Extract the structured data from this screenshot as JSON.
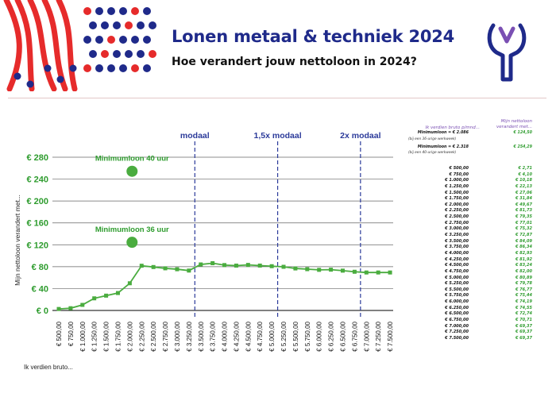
{
  "header": {
    "title": "Lonen metaal & techniek 2024",
    "subtitle": "Hoe verandert jouw nettoloon in 2024?"
  },
  "colors": {
    "title": "#1f2a8a",
    "accent_red": "#e62b2b",
    "logo_blue": "#1f2a8a",
    "logo_purple": "#7a4fb3",
    "series_green": "#4aac3f",
    "label_green": "#2e9c2e",
    "ref_line_blue": "#2b3a9a"
  },
  "icons": {
    "decoration": "dots-and-stripes-pattern",
    "logo": "wrench-v-logo-icon"
  },
  "chart_data": {
    "type": "line",
    "xlabel": "Ik verdien bruto...",
    "ylabel": "Mijn nettoloon verandert met...",
    "ylim": [
      0,
      280
    ],
    "yticks": [
      "€ 0",
      "€ 40",
      "€ 80",
      "€ 120",
      "€ 160",
      "€ 200",
      "€ 240",
      "€ 280"
    ],
    "grid": true,
    "categories": [
      "€ 500,00",
      "€ 750,00",
      "€ 1.000,00",
      "€ 1.250,00",
      "€ 1.500,00",
      "€ 1.750,00",
      "€ 2.000,00",
      "€ 2.250,00",
      "€ 2.500,00",
      "€ 2.750,00",
      "€ 3.000,00",
      "€ 3.250,00",
      "€ 3.500,00",
      "€ 3.750,00",
      "€ 4.000,00",
      "€ 4.250,00",
      "€ 4.500,00",
      "€ 4.750,00",
      "€ 5.000,00",
      "€ 5.250,00",
      "€ 5.500,00",
      "€ 5.750,00",
      "€ 6.000,00",
      "€ 6.250,00",
      "€ 6.500,00",
      "€ 6.750,00",
      "€ 7.000,00",
      "€ 7.250,00",
      "€ 7.500,00"
    ],
    "series": [
      {
        "values": [
          2.71,
          4.1,
          10.18,
          22.13,
          27.06,
          31.84,
          49.67,
          81.73,
          79.35,
          77.01,
          75.32,
          72.87,
          84.09,
          86.34,
          82.93,
          81.92,
          83.24,
          82.0,
          80.89,
          79.78,
          76.77,
          75.44,
          74.19,
          74.55,
          72.74,
          70.71,
          69.37,
          69.37,
          69.37
        ]
      }
    ],
    "reference_lines": [
      {
        "label": "modaal",
        "x": "€ 3.500,00"
      },
      {
        "label": "1,5x modaal",
        "x": "€ 5.250,00"
      },
      {
        "label": "2x modaal",
        "x": "€ 7.000,00"
      }
    ],
    "highlights": [
      {
        "label": "Minimumloon 40 uur",
        "y": 254.29
      },
      {
        "label": "Minimumloon 36 uur",
        "y": 124.5
      }
    ]
  },
  "table": {
    "col1": "Ik verdien bruto p/mnd...",
    "col2": "Mijn nettoloon verandert met...",
    "notes": [
      {
        "left": "Minimumloon = € 2.086",
        "right": "€ 124,50",
        "sub": "(bij een 36-urige werkweek)"
      },
      {
        "left": "Minimumloon = € 2.318",
        "right": "€ 254,29",
        "sub": "(bij een 40-urige werkweek)"
      }
    ],
    "rows": [
      {
        "gross": "€ 500,00",
        "net": "€ 2,71"
      },
      {
        "gross": "€ 750,00",
        "net": "€ 4,10"
      },
      {
        "gross": "€ 1.000,00",
        "net": "€ 10,18"
      },
      {
        "gross": "€ 1.250,00",
        "net": "€ 22,13"
      },
      {
        "gross": "€ 1.500,00",
        "net": "€ 27,06"
      },
      {
        "gross": "€ 1.750,00",
        "net": "€ 31,84"
      },
      {
        "gross": "€ 2.000,00",
        "net": "€ 49,67"
      },
      {
        "gross": "€ 2.250,00",
        "net": "€ 81,73"
      },
      {
        "gross": "€ 2.500,00",
        "net": "€ 79,35"
      },
      {
        "gross": "€ 2.750,00",
        "net": "€ 77,01"
      },
      {
        "gross": "€ 3.000,00",
        "net": "€ 75,32"
      },
      {
        "gross": "€ 3.250,00",
        "net": "€ 72,87"
      },
      {
        "gross": "€ 3.500,00",
        "net": "€ 84,09"
      },
      {
        "gross": "€ 3.750,00",
        "net": "€ 86,34"
      },
      {
        "gross": "€ 4.000,00",
        "net": "€ 82,93"
      },
      {
        "gross": "€ 4.250,00",
        "net": "€ 81,92"
      },
      {
        "gross": "€ 4.500,00",
        "net": "€ 83,24"
      },
      {
        "gross": "€ 4.750,00",
        "net": "€ 82,00"
      },
      {
        "gross": "€ 5.000,00",
        "net": "€ 80,89"
      },
      {
        "gross": "€ 5.250,00",
        "net": "€ 79,78"
      },
      {
        "gross": "€ 5.500,00",
        "net": "€ 76,77"
      },
      {
        "gross": "€ 5.750,00",
        "net": "€ 75,44"
      },
      {
        "gross": "€ 6.000,00",
        "net": "€ 74,19"
      },
      {
        "gross": "€ 6.250,00",
        "net": "€ 74,55"
      },
      {
        "gross": "€ 6.500,00",
        "net": "€ 72,74"
      },
      {
        "gross": "€ 6.750,00",
        "net": "€ 70,71"
      },
      {
        "gross": "€ 7.000,00",
        "net": "€ 69,37"
      },
      {
        "gross": "€ 7.250,00",
        "net": "€ 69,37"
      },
      {
        "gross": "€ 7.500,00",
        "net": "€ 69,37"
      }
    ]
  }
}
